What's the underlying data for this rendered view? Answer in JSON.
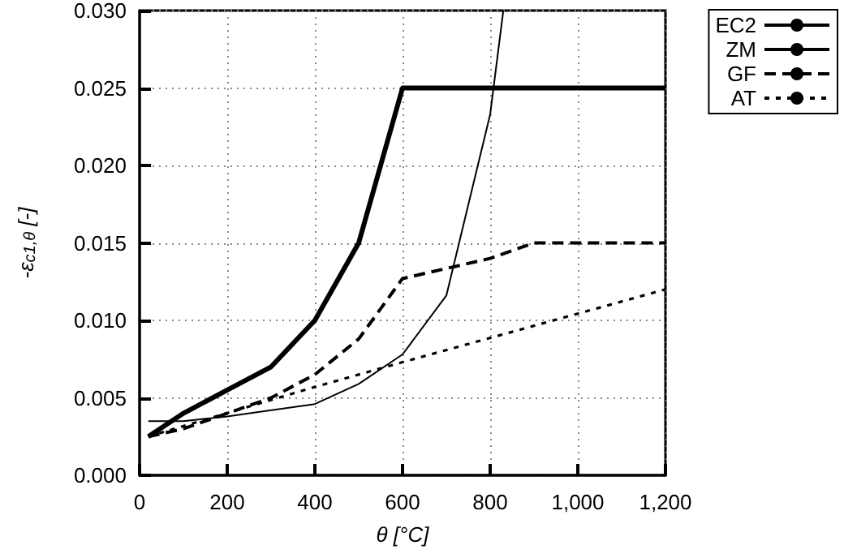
{
  "chart_data": {
    "type": "line",
    "xlabel": "θ [°C]",
    "ylabel": "-ε$_{c1,θ}$ [-]",
    "xlim": [
      0,
      1200
    ],
    "ylim": [
      0,
      0.03
    ],
    "xticks": [
      0,
      200,
      400,
      600,
      800,
      {
        "value": 1000,
        "label": "1,000"
      },
      {
        "value": 1200,
        "label": "1,200"
      }
    ],
    "yticks": [
      {
        "value": 0,
        "label": "0.000"
      },
      0.005,
      {
        "value": 0.01,
        "label": "0.010"
      },
      0.015,
      {
        "value": 0.02,
        "label": "0.020"
      },
      0.025,
      {
        "value": 0.03,
        "label": "0.030"
      }
    ],
    "grid": true,
    "legend": "top right",
    "marker": "none",
    "series": [
      {
        "name": "EC2",
        "color": "#000000",
        "line_style": "solid",
        "x": [
          20,
          100,
          200,
          300,
          400,
          500,
          600,
          1200
        ],
        "values": [
          0.0025,
          0.004,
          0.0055,
          0.007,
          0.01,
          0.015,
          0.025,
          0.025
        ]
      },
      {
        "name": "ZM",
        "color": "#000000",
        "line_style": "solid",
        "x": [
          20,
          100,
          200,
          400,
          500,
          600,
          700,
          800,
          830
        ],
        "values": [
          0.0035,
          0.0035,
          0.0038,
          0.0046,
          0.0059,
          0.0078,
          0.0116,
          0.0233,
          0.03
        ]
      },
      {
        "name": "GF",
        "color": "#000000",
        "line_style": "dashed",
        "x": [
          20,
          100,
          300,
          400,
          500,
          600,
          800,
          900,
          1200
        ],
        "values": [
          0.0025,
          0.003,
          0.005,
          0.0065,
          0.0088,
          0.0127,
          0.014,
          0.015,
          0.015
        ]
      },
      {
        "name": "AT",
        "color": "#000000",
        "line_style": "dotted",
        "x": [
          20,
          400,
          600,
          1200
        ],
        "values": [
          0.0025,
          0.0057,
          0.0073,
          0.012
        ]
      }
    ]
  }
}
